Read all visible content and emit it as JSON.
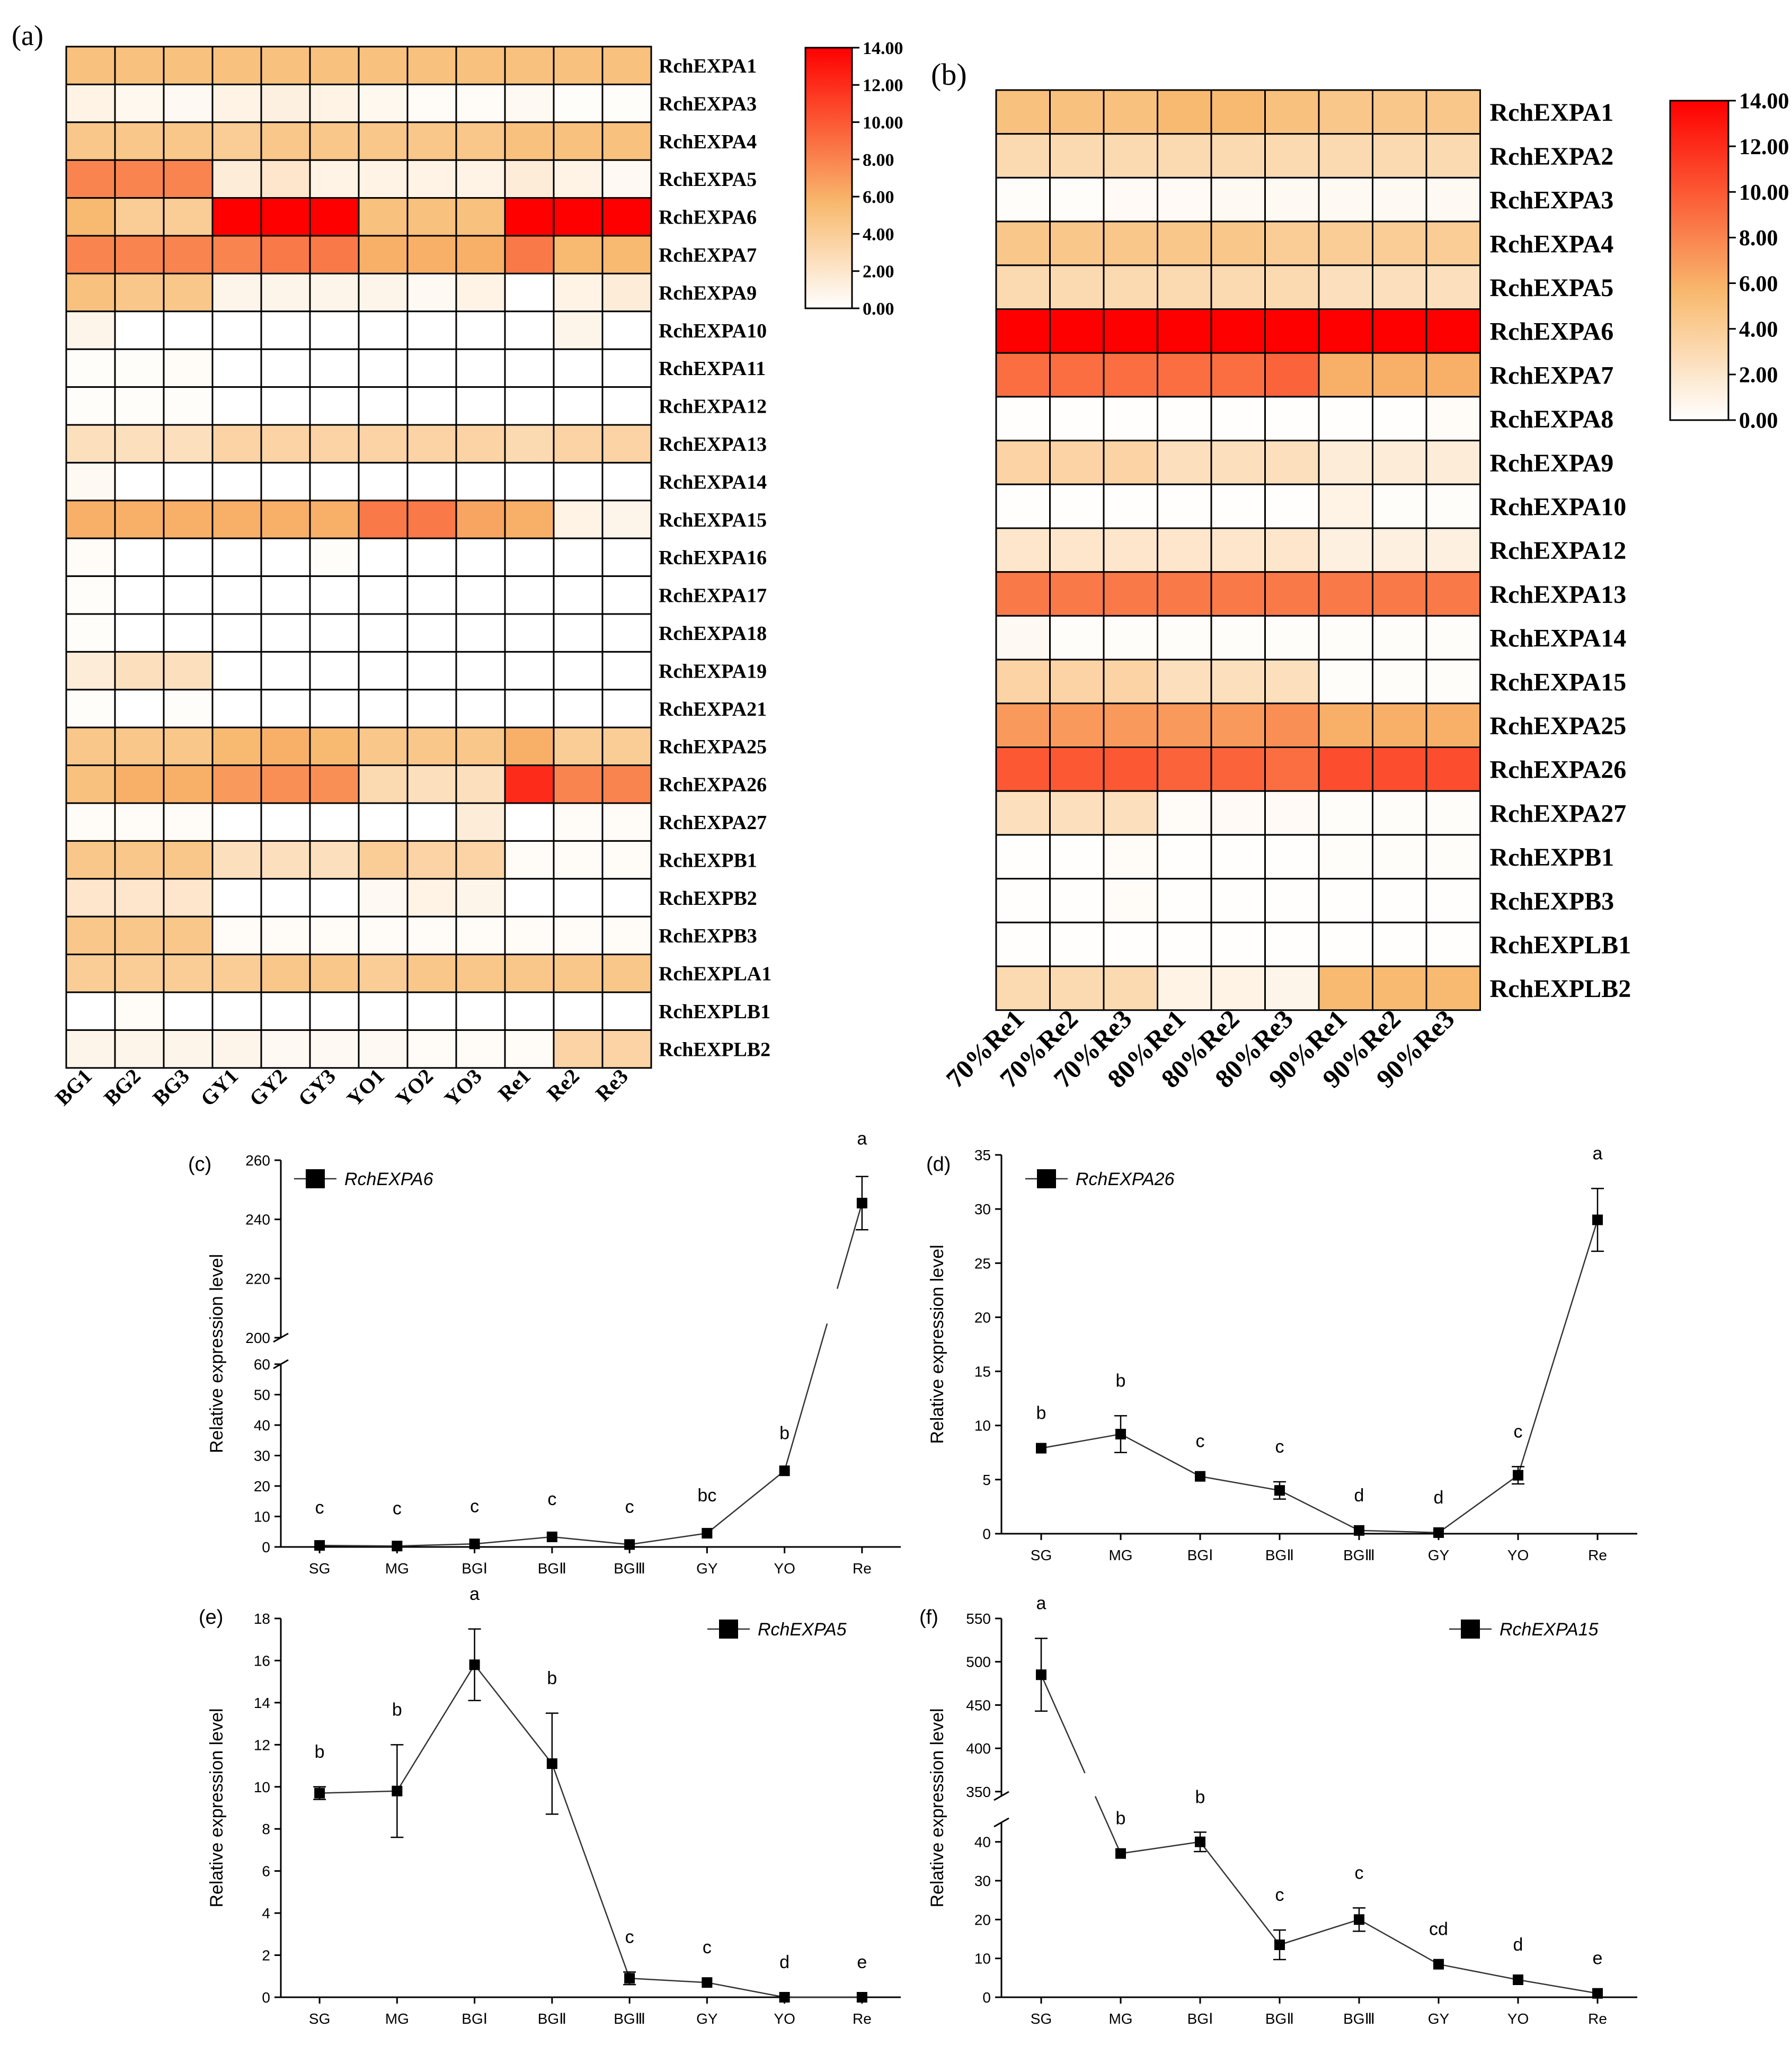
{
  "colors": {
    "low": "#ffffff",
    "mid": "#f8b96e",
    "high": "#ff0000"
  },
  "chart_data": [
    {
      "panel": "(a)",
      "type": "heatmap",
      "columns": [
        "BG1",
        "BG2",
        "BG3",
        "GY1",
        "GY2",
        "GY3",
        "YO1",
        "YO2",
        "YO3",
        "Re1",
        "Re2",
        "Re3"
      ],
      "rows": [
        "RchEXPA1",
        "RchEXPA3",
        "RchEXPA4",
        "RchEXPA5",
        "RchEXPA6",
        "RchEXPA7",
        "RchEXPA9",
        "RchEXPA10",
        "RchEXPA11",
        "RchEXPA12",
        "RchEXPA13",
        "RchEXPA14",
        "RchEXPA15",
        "RchEXPA16",
        "RchEXPA17",
        "RchEXPA18",
        "RchEXPA19",
        "RchEXPA21",
        "RchEXPA25",
        "RchEXPA26",
        "RchEXPA27",
        "RchEXPB1",
        "RchEXPB2",
        "RchEXPB3",
        "RchEXPLA1",
        "RchEXPLB1",
        "RchEXPLB2"
      ],
      "values": [
        [
          5.0,
          5.0,
          5.0,
          5.0,
          5.0,
          5.0,
          5.0,
          5.0,
          5.0,
          5.0,
          5.0,
          5.0
        ],
        [
          1.0,
          0.6,
          0.5,
          1.0,
          1.2,
          1.0,
          0.6,
          0.3,
          0.3,
          0.5,
          0.2,
          0.2
        ],
        [
          4.5,
          4.5,
          4.5,
          4.0,
          4.5,
          4.5,
          4.5,
          4.5,
          4.5,
          5.0,
          5.0,
          5.0
        ],
        [
          8.0,
          8.0,
          8.0,
          1.5,
          2.0,
          1.0,
          1.0,
          1.0,
          1.0,
          1.5,
          1.0,
          0.5
        ],
        [
          5.5,
          4.0,
          4.0,
          14.0,
          14.0,
          14.0,
          5.0,
          5.0,
          5.0,
          14.0,
          14.0,
          14.0
        ],
        [
          8.0,
          8.0,
          8.0,
          8.0,
          8.5,
          8.5,
          6.0,
          6.0,
          6.0,
          8.5,
          5.5,
          5.5
        ],
        [
          5.0,
          4.5,
          4.5,
          0.8,
          0.8,
          0.8,
          0.8,
          0.5,
          1.0,
          0.0,
          1.0,
          1.5
        ],
        [
          0.8,
          0.0,
          0.0,
          0.0,
          0.0,
          0.0,
          0.0,
          0.0,
          0.0,
          0.0,
          0.8,
          0.0
        ],
        [
          0.2,
          0.2,
          0.3,
          0.0,
          0.0,
          0.0,
          0.0,
          0.0,
          0.0,
          0.0,
          0.0,
          0.0
        ],
        [
          0.2,
          0.2,
          0.2,
          0.0,
          0.0,
          0.0,
          0.0,
          0.0,
          0.0,
          0.0,
          0.0,
          0.0
        ],
        [
          2.5,
          2.5,
          2.5,
          3.5,
          3.5,
          3.5,
          3.5,
          3.5,
          3.5,
          3.0,
          3.5,
          3.5
        ],
        [
          0.5,
          0.0,
          0.0,
          0.0,
          0.0,
          0.0,
          0.0,
          0.0,
          0.0,
          0.0,
          0.0,
          0.0
        ],
        [
          6.0,
          6.0,
          6.0,
          6.0,
          6.0,
          6.0,
          8.5,
          8.5,
          6.5,
          6.0,
          1.0,
          0.8
        ],
        [
          0.3,
          0.0,
          0.0,
          0.0,
          0.0,
          0.2,
          0.0,
          0.0,
          0.0,
          0.0,
          0.0,
          0.0
        ],
        [
          0.2,
          0.0,
          0.0,
          0.0,
          0.0,
          0.0,
          0.0,
          0.0,
          0.0,
          0.0,
          0.0,
          0.0
        ],
        [
          0.2,
          0.0,
          0.0,
          0.0,
          0.0,
          0.0,
          0.0,
          0.0,
          0.0,
          0.0,
          0.0,
          0.0
        ],
        [
          1.5,
          2.5,
          2.5,
          0.0,
          0.0,
          0.0,
          0.0,
          0.0,
          0.0,
          0.0,
          0.0,
          0.0
        ],
        [
          0.2,
          0.0,
          0.2,
          0.0,
          0.0,
          0.0,
          0.0,
          0.0,
          0.0,
          0.0,
          0.0,
          0.0
        ],
        [
          4.5,
          4.5,
          4.5,
          5.5,
          6.0,
          5.5,
          4.5,
          4.5,
          4.5,
          6.0,
          4.0,
          4.0
        ],
        [
          5.0,
          6.0,
          6.0,
          7.0,
          7.5,
          7.5,
          3.0,
          2.5,
          2.5,
          12.0,
          8.0,
          8.0
        ],
        [
          0.3,
          0.3,
          0.3,
          0.0,
          0.0,
          0.0,
          0.0,
          0.0,
          1.5,
          0.0,
          0.3,
          0.3
        ],
        [
          4.5,
          4.5,
          4.5,
          2.5,
          2.5,
          2.5,
          4.0,
          3.5,
          3.5,
          0.3,
          0.3,
          0.3
        ],
        [
          2.0,
          2.0,
          2.0,
          0.0,
          0.0,
          0.0,
          0.5,
          1.0,
          0.8,
          0.0,
          0.0,
          0.0
        ],
        [
          4.5,
          4.5,
          4.5,
          0.3,
          0.3,
          0.3,
          0.3,
          0.3,
          0.3,
          0.3,
          0.3,
          0.3
        ],
        [
          4.0,
          4.0,
          4.0,
          4.0,
          4.5,
          4.5,
          4.0,
          4.5,
          4.5,
          4.5,
          4.5,
          4.5
        ],
        [
          0.0,
          0.3,
          0.0,
          0.0,
          0.0,
          0.0,
          0.0,
          0.0,
          0.0,
          0.0,
          0.0,
          0.0
        ],
        [
          0.8,
          0.8,
          0.8,
          0.8,
          0.5,
          0.5,
          0.5,
          0.3,
          0.3,
          0.3,
          3.5,
          3.5
        ]
      ],
      "scale": {
        "min": 0,
        "max": 14,
        "ticks": [
          "14.00",
          "12.00",
          "10.00",
          "8.00",
          "6.00",
          "4.00",
          "2.00",
          "0.00"
        ]
      }
    },
    {
      "panel": "(b)",
      "type": "heatmap",
      "columns": [
        "70%Re1",
        "70%Re2",
        "70%Re3",
        "80%Re1",
        "80%Re2",
        "80%Re3",
        "90%Re1",
        "90%Re2",
        "90%Re3"
      ],
      "rows": [
        "RchEXPA1",
        "RchEXPA2",
        "RchEXPA3",
        "RchEXPA4",
        "RchEXPA5",
        "RchEXPA6",
        "RchEXPA7",
        "RchEXPA8",
        "RchEXPA9",
        "RchEXPA10",
        "RchEXPA12",
        "RchEXPA13",
        "RchEXPA14",
        "RchEXPA15",
        "RchEXPA25",
        "RchEXPA26",
        "RchEXPA27",
        "RchEXPB1",
        "RchEXPB3",
        "RchEXPLB1",
        "RchEXPLB2"
      ],
      "values": [
        [
          5.0,
          5.0,
          5.0,
          5.5,
          5.5,
          5.0,
          4.5,
          4.5,
          4.5
        ],
        [
          3.0,
          3.0,
          3.0,
          3.0,
          3.0,
          3.0,
          3.0,
          3.0,
          3.0
        ],
        [
          0.2,
          0.2,
          0.4,
          0.4,
          0.5,
          0.5,
          0.5,
          0.5,
          0.5
        ],
        [
          4.5,
          4.5,
          4.5,
          4.5,
          4.5,
          4.0,
          4.0,
          4.0,
          4.0
        ],
        [
          3.0,
          3.0,
          3.0,
          3.0,
          3.0,
          3.0,
          2.5,
          2.5,
          2.5
        ],
        [
          14.0,
          14.0,
          14.0,
          14.0,
          14.0,
          14.0,
          14.0,
          14.0,
          14.0
        ],
        [
          9.0,
          9.0,
          9.0,
          9.0,
          9.0,
          9.5,
          6.0,
          6.0,
          6.0
        ],
        [
          0.1,
          0.1,
          0.1,
          0.1,
          0.1,
          0.1,
          0.1,
          0.1,
          0.3
        ],
        [
          3.5,
          3.5,
          3.5,
          2.5,
          2.5,
          2.5,
          1.5,
          1.5,
          1.5
        ],
        [
          0.1,
          0.1,
          0.1,
          0.1,
          0.1,
          0.1,
          1.0,
          0.2,
          0.2
        ],
        [
          2.0,
          2.0,
          2.0,
          2.0,
          2.0,
          2.0,
          1.2,
          1.2,
          1.2
        ],
        [
          8.5,
          8.5,
          8.5,
          8.5,
          8.5,
          8.5,
          8.5,
          8.5,
          8.5
        ],
        [
          0.5,
          0.2,
          0.2,
          0.2,
          0.2,
          0.2,
          0.2,
          0.2,
          0.2
        ],
        [
          3.5,
          3.5,
          3.5,
          2.5,
          2.5,
          2.5,
          0.2,
          0.2,
          0.2
        ],
        [
          7.0,
          7.0,
          7.0,
          7.0,
          7.0,
          7.5,
          6.0,
          6.0,
          6.0
        ],
        [
          10.0,
          10.0,
          10.0,
          9.5,
          9.5,
          9.0,
          10.5,
          10.5,
          10.5
        ],
        [
          2.5,
          2.5,
          2.5,
          0.3,
          0.4,
          0.4,
          0.2,
          0.2,
          0.2
        ],
        [
          0.1,
          0.1,
          0.3,
          0.1,
          0.1,
          0.1,
          0.2,
          0.2,
          0.2
        ],
        [
          0.1,
          0.1,
          0.3,
          0.1,
          0.1,
          0.1,
          0.1,
          0.1,
          0.1
        ],
        [
          0.1,
          0.1,
          0.1,
          0.1,
          0.1,
          0.1,
          0.1,
          0.1,
          0.1
        ],
        [
          3.0,
          3.0,
          3.0,
          1.0,
          1.0,
          0.8,
          5.5,
          5.5,
          5.5
        ]
      ],
      "scale": {
        "min": 0,
        "max": 14,
        "ticks": [
          "14.00",
          "12.00",
          "10.00",
          "8.00",
          "6.00",
          "4.00",
          "2.00",
          "0.00"
        ]
      }
    },
    {
      "panel": "(c)",
      "type": "line",
      "series_name": "RchEXPA6",
      "ylabel": "Relative expression level",
      "categories": [
        "SG",
        "MG",
        "BGⅠ",
        "BGⅡ",
        "BGⅢ",
        "GY",
        "YO",
        "Re"
      ],
      "values": [
        0.5,
        0.3,
        1.0,
        3.3,
        0.8,
        4.5,
        25.0,
        245.5
      ],
      "errors": [
        0,
        0,
        0,
        0,
        0,
        0,
        0,
        9
      ],
      "letters": [
        "c",
        "c",
        "c",
        "c",
        "c",
        "bc",
        "b",
        "a"
      ],
      "ylim": [
        0,
        260
      ],
      "broken_axis": {
        "lower": [
          0,
          60
        ],
        "upper": [
          200,
          260
        ]
      },
      "yticks": [
        "0",
        "10",
        "20",
        "30",
        "40",
        "50",
        "60",
        "200",
        "220",
        "240",
        "260"
      ]
    },
    {
      "panel": "(d)",
      "type": "line",
      "series_name": "RchEXPA26",
      "ylabel": "Relative expression level",
      "categories": [
        "SG",
        "MG",
        "BGⅠ",
        "BGⅡ",
        "BGⅢ",
        "GY",
        "YO",
        "Re"
      ],
      "values": [
        7.9,
        9.2,
        5.3,
        4.0,
        0.3,
        0.1,
        5.4,
        29.0
      ],
      "errors": [
        0,
        1.7,
        0,
        0.8,
        0,
        0,
        0.8,
        2.9
      ],
      "letters": [
        "b",
        "b",
        "c",
        "c",
        "d",
        "d",
        "c",
        "a"
      ],
      "ylim": [
        0,
        35
      ],
      "yticks": [
        "0",
        "5",
        "10",
        "15",
        "20",
        "25",
        "30",
        "35"
      ]
    },
    {
      "panel": "(e)",
      "type": "line",
      "series_name": "RchEXPA5",
      "ylabel": "Relative expression level",
      "categories": [
        "SG",
        "MG",
        "BGⅠ",
        "BGⅡ",
        "BGⅢ",
        "GY",
        "YO",
        "Re"
      ],
      "values": [
        9.7,
        9.8,
        15.8,
        11.1,
        0.9,
        0.7,
        0.0,
        0.0
      ],
      "errors": [
        0.3,
        2.2,
        1.7,
        2.4,
        0.3,
        0,
        0,
        0
      ],
      "letters": [
        "b",
        "b",
        "a",
        "b",
        "c",
        "c",
        "d",
        "e"
      ],
      "ylim": [
        0,
        18
      ],
      "yticks": [
        "0",
        "2",
        "4",
        "6",
        "8",
        "10",
        "12",
        "14",
        "16",
        "18"
      ]
    },
    {
      "panel": "(f)",
      "type": "line",
      "series_name": "RchEXPA15",
      "ylabel": "Relative expression level",
      "categories": [
        "SG",
        "MG",
        "BGⅠ",
        "BGⅡ",
        "BGⅢ",
        "GY",
        "YO",
        "Re"
      ],
      "values": [
        485.0,
        37.0,
        40.0,
        13.5,
        20.0,
        8.5,
        4.5,
        1.0
      ],
      "errors": [
        42,
        0,
        2.5,
        3.8,
        3.0,
        0,
        0,
        0
      ],
      "letters": [
        "a",
        "b",
        "b",
        "c",
        "c",
        "cd",
        "d",
        "e"
      ],
      "ylim": [
        0,
        550
      ],
      "broken_axis": {
        "lower": [
          0,
          45
        ],
        "upper": [
          345,
          550
        ]
      },
      "yticks": [
        "0",
        "10",
        "20",
        "30",
        "40",
        "350",
        "400",
        "450",
        "500",
        "550"
      ]
    }
  ]
}
